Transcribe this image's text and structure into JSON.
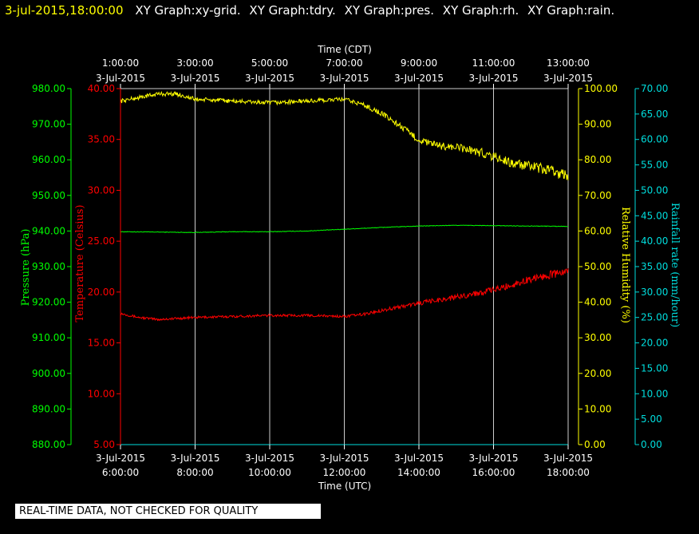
{
  "header": {
    "datetime": "3-jul-2015,18:00:00",
    "tabs": [
      "XY Graph:xy-grid.",
      "XY Graph:tdry.",
      "XY Graph:pres.",
      "XY Graph:rh.",
      "XY Graph:rain."
    ]
  },
  "footer_note": "REAL-TIME DATA, NOT CHECKED FOR QUALITY",
  "colors": {
    "temperature": "#ff0000",
    "pressure": "#00ff00",
    "humidity": "#ffff00",
    "rain": "#00dddd",
    "grid": "#cccccc",
    "text": "#ffffff"
  },
  "chart_data": {
    "type": "line",
    "x_range_hours_utc": [
      6,
      18
    ],
    "top_axis": {
      "title": "Time (CDT)",
      "ticks": [
        {
          "time": "1:00:00",
          "date": "3-Jul-2015"
        },
        {
          "time": "3:00:00",
          "date": "3-Jul-2015"
        },
        {
          "time": "5:00:00",
          "date": "3-Jul-2015"
        },
        {
          "time": "7:00:00",
          "date": "3-Jul-2015"
        },
        {
          "time": "9:00:00",
          "date": "3-Jul-2015"
        },
        {
          "time": "11:00:00",
          "date": "3-Jul-2015"
        },
        {
          "time": "13:00:00",
          "date": "3-Jul-2015"
        }
      ]
    },
    "bottom_axis": {
      "title": "Time (UTC)",
      "ticks": [
        {
          "date": "3-Jul-2015",
          "time": "6:00:00"
        },
        {
          "date": "3-Jul-2015",
          "time": "8:00:00"
        },
        {
          "date": "3-Jul-2015",
          "time": "10:00:00"
        },
        {
          "date": "3-Jul-2015",
          "time": "12:00:00"
        },
        {
          "date": "3-Jul-2015",
          "time": "14:00:00"
        },
        {
          "date": "3-Jul-2015",
          "time": "16:00:00"
        },
        {
          "date": "3-Jul-2015",
          "time": "18:00:00"
        }
      ]
    },
    "axes": {
      "pressure": {
        "label": "Pressure (hPa)",
        "range": [
          880,
          980
        ],
        "ticks": [
          "980.00",
          "970.00",
          "960.00",
          "950.00",
          "940.00",
          "930.00",
          "920.00",
          "910.00",
          "900.00",
          "890.00",
          "880.00"
        ]
      },
      "temperature": {
        "label": "Temperature (Celsius)",
        "range": [
          5,
          40
        ],
        "ticks": [
          "40.00",
          "35.00",
          "30.00",
          "25.00",
          "20.00",
          "15.00",
          "10.00",
          "5.00"
        ]
      },
      "humidity": {
        "label": "Relative Humidity (%)",
        "range": [
          0,
          100
        ],
        "ticks": [
          "100.00",
          "90.00",
          "80.00",
          "70.00",
          "60.00",
          "50.00",
          "40.00",
          "30.00",
          "20.00",
          "10.00",
          "0.00"
        ]
      },
      "rain": {
        "label": "Rainfall rate (mm/hour)",
        "range": [
          0,
          70
        ],
        "ticks": [
          "70.00",
          "65.00",
          "60.00",
          "55.00",
          "50.00",
          "45.00",
          "40.00",
          "35.00",
          "30.00",
          "25.00",
          "20.00",
          "15.00",
          "10.00",
          "5.00",
          "0.00"
        ]
      }
    },
    "series": [
      {
        "name": "pres",
        "axis": "pressure",
        "x": [
          6,
          7,
          8,
          9,
          10,
          11,
          12,
          13,
          14,
          15,
          16,
          17,
          18
        ],
        "y": [
          939.8,
          939.7,
          939.6,
          939.8,
          939.8,
          940.0,
          940.5,
          941.0,
          941.4,
          941.6,
          941.5,
          941.4,
          941.3
        ]
      },
      {
        "name": "tdry",
        "axis": "temperature",
        "x": [
          6,
          6.5,
          7,
          7.5,
          8,
          9,
          10,
          11,
          12,
          12.5,
          13,
          14,
          15,
          16,
          16.5,
          17,
          17.5,
          18
        ],
        "y": [
          17.9,
          17.5,
          17.3,
          17.4,
          17.5,
          17.6,
          17.7,
          17.7,
          17.6,
          17.8,
          18.2,
          18.9,
          19.5,
          20.2,
          20.7,
          21.3,
          21.7,
          22.0
        ]
      },
      {
        "name": "rh",
        "axis": "humidity",
        "x": [
          6,
          6.5,
          7,
          7.5,
          8,
          9,
          10,
          11,
          12,
          12.5,
          13,
          13.5,
          14,
          14.5,
          15,
          15.5,
          16,
          16.5,
          17,
          17.5,
          18
        ],
        "y": [
          96.5,
          97.5,
          98.5,
          98.5,
          97.0,
          96.5,
          96.0,
          96.5,
          97.0,
          95.5,
          93.0,
          89.5,
          85.5,
          84.0,
          83.5,
          82.5,
          81.0,
          79.0,
          78.0,
          77.0,
          75.5
        ]
      },
      {
        "name": "rain",
        "axis": "rain",
        "x": [
          6,
          18
        ],
        "y": [
          0,
          0
        ]
      }
    ],
    "grid": true
  }
}
